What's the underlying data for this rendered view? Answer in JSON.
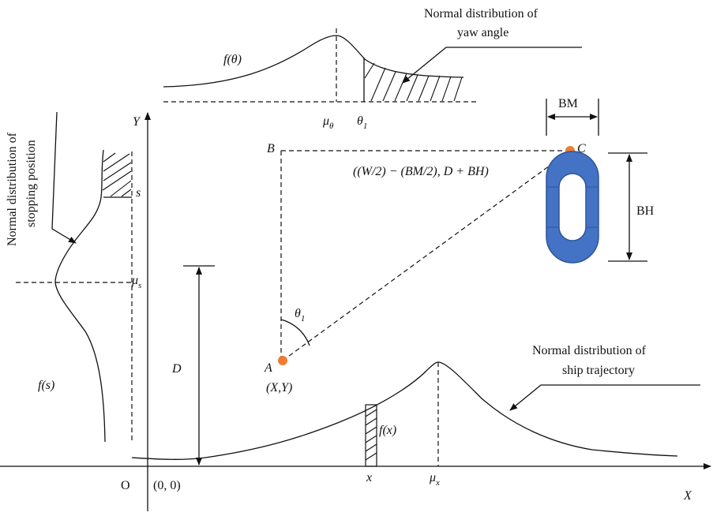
{
  "labels": {
    "yaw_callout_line1": "Normal distribution of",
    "yaw_callout_line2": "yaw angle",
    "stop_callout_line1": "Normal distribution of",
    "stop_callout_line2": "stopping position",
    "traj_callout_line1": "Normal distribution of",
    "traj_callout_line2": "ship trajectory",
    "f_theta": "f(θ)",
    "mu": "μ",
    "theta": "θ",
    "sub_theta": "θ",
    "sub_one": "1",
    "sub_s": "s",
    "sub_x": "x",
    "s": "s",
    "f_s": "f(s)",
    "f_x": "f(x)",
    "x": "x",
    "D": "D",
    "point_A": "A",
    "point_B": "B",
    "point_C": "C",
    "coord_A": "(X,Y)",
    "coord_C": "((W/2) − (BM/2), D + BH)",
    "origin": "O",
    "origin_coord": "(0, 0)",
    "axis_x": "X",
    "axis_y": "Y",
    "bm": "BM",
    "bh": "BH"
  },
  "colors": {
    "line": "#111111",
    "berth_fill": "#4472c4",
    "berth_stroke": "#2f5597",
    "point_fill": "#ed7d31"
  }
}
